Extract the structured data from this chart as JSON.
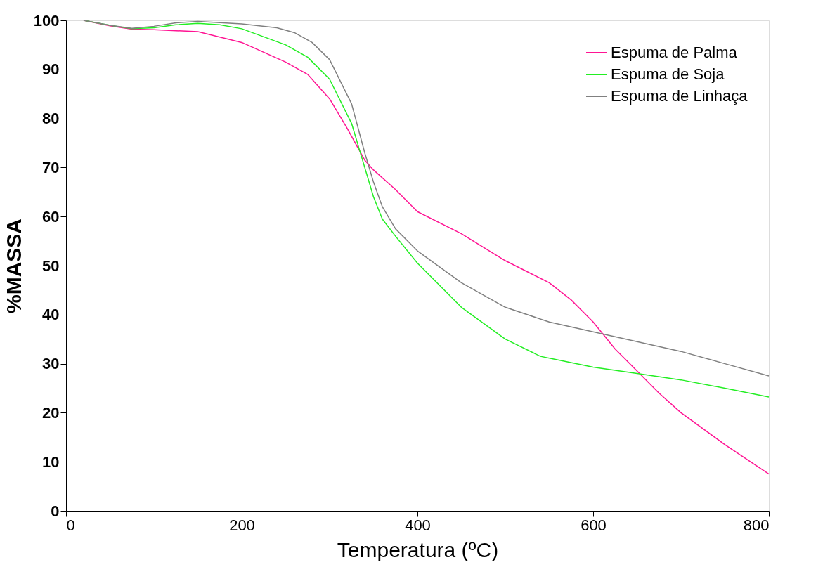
{
  "chart_data": {
    "type": "line",
    "xlabel": "Temperatura (ºC)",
    "ylabel": "%MASSA",
    "xlim": [
      0,
      800
    ],
    "ylim": [
      0,
      100
    ],
    "xticks": [
      0,
      200,
      400,
      600,
      800
    ],
    "yticks": [
      0,
      10,
      20,
      30,
      40,
      50,
      60,
      70,
      80,
      90,
      100
    ],
    "grid": false,
    "legend": "top right",
    "marker": "none",
    "line_style": "solid",
    "series": [
      {
        "name": "Espuma de Palma",
        "color": "#ff1493",
        "x": [
          20,
          50,
          75,
          100,
          150,
          200,
          250,
          275,
          300,
          320,
          340,
          350,
          375,
          400,
          450,
          500,
          550,
          575,
          600,
          625,
          650,
          675,
          700,
          750,
          800
        ],
        "values": [
          100,
          98.9,
          98.2,
          98.1,
          97.7,
          95.5,
          91.5,
          89,
          84,
          78,
          71.5,
          69.5,
          65.5,
          61,
          56.5,
          51,
          46.5,
          43,
          38.5,
          33,
          28.5,
          24,
          20,
          13.5,
          7.5
        ]
      },
      {
        "name": "Espuma de Soja",
        "color": "#22ee22",
        "x": [
          20,
          50,
          75,
          100,
          125,
          150,
          175,
          200,
          250,
          275,
          300,
          325,
          340,
          350,
          360,
          375,
          400,
          450,
          500,
          540,
          600,
          650,
          700,
          750,
          800
        ],
        "values": [
          100,
          99,
          98.3,
          98.5,
          99.1,
          99.4,
          99.1,
          98.3,
          95,
          92.5,
          88,
          79,
          70,
          64,
          59.5,
          56,
          50.5,
          41.5,
          35,
          31.5,
          29.3,
          28,
          26.7,
          25,
          23.2
        ]
      },
      {
        "name": "Espuma de Linhaça",
        "color": "#808080",
        "x": [
          20,
          50,
          75,
          100,
          125,
          150,
          200,
          240,
          260,
          280,
          300,
          325,
          340,
          350,
          360,
          375,
          400,
          450,
          500,
          550,
          600,
          650,
          700,
          750,
          800
        ],
        "values": [
          100,
          99,
          98.4,
          98.8,
          99.5,
          99.8,
          99.3,
          98.5,
          97.5,
          95.5,
          92,
          83,
          73,
          67,
          62,
          57.5,
          53,
          46.5,
          41.5,
          38.5,
          36.5,
          34.5,
          32.5,
          30,
          27.5
        ]
      }
    ]
  }
}
